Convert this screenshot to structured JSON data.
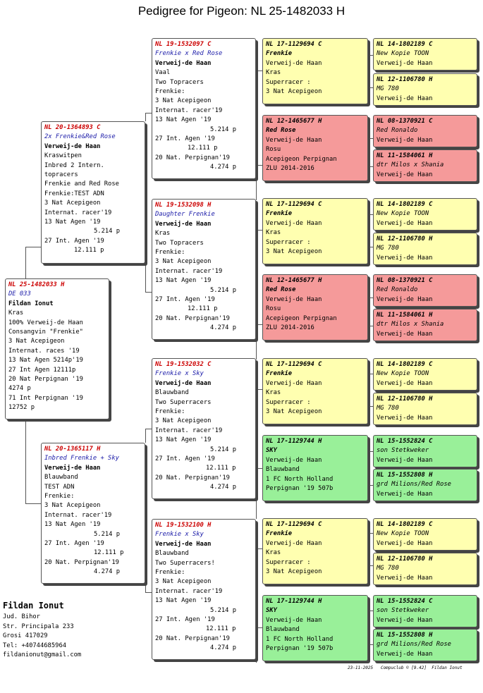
{
  "title": "Pedigree for Pigeon: NL  25-1482033 H",
  "subject": {
    "ring": "NL  25-1482033 H",
    "name": "DE 033",
    "lines": [
      "Fildan Ionut",
      "Kras",
      "100% Verweij-de Haan",
      "Consangvin \"Frenkie\"",
      "3 Nat Acepigeon",
      "Internat. races '19",
      "13 Nat Agen 5214p'19",
      "27 Int Agen 12111p",
      "20 Nat Perpignan '19",
      "4274 p",
      "71 Int Perpignan '19",
      "12752 p"
    ]
  },
  "parents": [
    {
      "ring": "NL  20-1364893 C",
      "name": "2x Frenkie&Red Rose",
      "lines": [
        "Verweij-de Haan",
        "Kraswitpen",
        "Inbred 2 Intern.",
        "topracers",
        "Frenkie and Red Rose",
        "Frenkie:TEST ADN",
        "3 Nat Acepigeon",
        "Internat. racer'19",
        "13 Nat Agen '19",
        "5.214 p",
        "27 Int. Agen '19",
        "12.111 p"
      ]
    },
    {
      "ring": "NL  20-1365117 H",
      "name": "Inbred Frenkie + Sky",
      "lines": [
        "Verweij-de Haan",
        "Blauwband",
        "TEST ADN",
        "Frenkie:",
        "3 Nat Acepigeon",
        "Internat. racer'19",
        "13 Nat Agen '19",
        "5.214 p",
        "27 Int. Agen '19",
        "12.111 p",
        "20 Nat. Perpignan'19",
        "4.274 p"
      ]
    }
  ],
  "grandparents": [
    {
      "ring": "NL  19-1532097 C",
      "name": "Frenkie x Red Rose",
      "lines": [
        "Verweij-de Haan",
        "Vaal",
        "Two Topracers",
        "Frenkie:",
        "3 Nat Acepigeon",
        "Internat. racer'19",
        "13 Nat Agen '19",
        "5.214 p",
        "27 Int. Agen '19",
        "12.111 p",
        "20 Nat. Perpignan'19",
        "4.274 p"
      ]
    },
    {
      "ring": "NL  19-1532098 H",
      "name": "Daughter Frenkie",
      "lines": [
        "Verweij-de Haan",
        "Kras",
        "Two Topracers",
        "Frenkie:",
        "3 Nat Acepigeon",
        "Internat. racer'19",
        "13 Nat Agen '19",
        "5.214 p",
        "27 Int. Agen '19",
        "12.111 p",
        "20 Nat. Perpignan'19",
        "4.274 p"
      ]
    },
    {
      "ring": "NL  19-1532032 C",
      "name": "Frenkie x Sky",
      "lines": [
        "Verweij-de Haan",
        "Blauwband",
        "Two Superracers",
        "Frenkie:",
        "3 Nat Acepigeon",
        "Internat. racer'19",
        "13 Nat Agen '19",
        "5.214 p",
        "27 Int. Agen '19",
        "12.111 p",
        "20 Nat. Perpignan'19",
        "4.274 p"
      ]
    },
    {
      "ring": "NL  19-1532100 H",
      "name": "Frenkie x Sky",
      "lines": [
        "Verweij-de Haan",
        "Blauwband",
        "Two Superracers!",
        "Frenkie:",
        "3 Nat Acepigeon",
        "Internat. racer'19",
        "13 Nat Agen '19",
        "5.214 p",
        "27 Int. Agen '19",
        "12.111 p",
        "20 Nat. Perpignan'19",
        "4.274 p"
      ]
    }
  ],
  "g3": [
    {
      "ring": "NL  17-1129694 C",
      "lines": [
        "Frenkie",
        "Verweij-de Haan",
        "Kras",
        "Superracer :",
        "3 Nat Acepigeon"
      ]
    },
    {
      "ring": "NL  12-1465677 H",
      "lines": [
        "Red Rose",
        "Verweij-de Haan",
        "Rosu",
        "Acepigeon Perpignan",
        "ZLU 2014-2016"
      ]
    },
    {
      "ring": "NL  17-1129694 C",
      "lines": [
        "Frenkie",
        "Verweij-de Haan",
        "Kras",
        "Superracer :",
        "3 Nat Acepigeon"
      ]
    },
    {
      "ring": "NL  12-1465677 H",
      "lines": [
        "Red Rose",
        "Verweij-de Haan",
        "Rosu",
        "Acepigeon Perpignan",
        "ZLU 2014-2016"
      ]
    },
    {
      "ring": "NL  17-1129694 C",
      "lines": [
        "Frenkie",
        "Verweij-de Haan",
        "Kras",
        "Superracer :",
        "3 Nat Acepigeon"
      ]
    },
    {
      "ring": "NL  17-1129744 H",
      "lines": [
        "SKY",
        "Verweij-de Haan",
        "Blauwband",
        "1 FC North Holland",
        "Perpignan '19 507b"
      ]
    },
    {
      "ring": "NL  17-1129694 C",
      "lines": [
        "Frenkie",
        "Verweij-de Haan",
        "Kras",
        "Superracer :",
        "3 Nat Acepigeon"
      ]
    },
    {
      "ring": "NL  17-1129744 H",
      "lines": [
        "SKY",
        "Verweij-de Haan",
        "Blauwband",
        "1 FC North Holland",
        "Perpignan '19 507b"
      ]
    }
  ],
  "g4": [
    {
      "ring": "NL  14-1802189 C",
      "lines": [
        "New Kopie TOON",
        "Verweij-de Haan"
      ]
    },
    {
      "ring": "NL  12-1106780 H",
      "lines": [
        "MG 780",
        "Verweij-de Haan"
      ]
    },
    {
      "ring": "NL  08-1370921 C",
      "lines": [
        "Red Ronaldo",
        "Verweij-de Haan"
      ]
    },
    {
      "ring": "NL  11-1584061 H",
      "lines": [
        "dtr Milos x Shania",
        "Verweij-de Haan"
      ]
    },
    {
      "ring": "NL  14-1802189 C",
      "lines": [
        "New Kopie TOON",
        "Verweij-de Haan"
      ]
    },
    {
      "ring": "NL  12-1106780 H",
      "lines": [
        "MG 780",
        "Verweij-de Haan"
      ]
    },
    {
      "ring": "NL  08-1370921 C",
      "lines": [
        "Red Ronaldo",
        "Verweij-de Haan"
      ]
    },
    {
      "ring": "NL  11-1584061 H",
      "lines": [
        "dtr Milos x Shania",
        "Verweij-de Haan"
      ]
    },
    {
      "ring": "NL  14-1802189 C",
      "lines": [
        "New Kopie TOON",
        "Verweij-de Haan"
      ]
    },
    {
      "ring": "NL  12-1106780 H",
      "lines": [
        "MG 780",
        "Verweij-de Haan"
      ]
    },
    {
      "ring": "NL  15-1552824 C",
      "lines": [
        "son Stetkweker",
        "Verweij-de Haan"
      ]
    },
    {
      "ring": "NL  15-1552808 H",
      "lines": [
        "grd Milions/Red Rose",
        "Verweij-de Haan"
      ]
    },
    {
      "ring": "NL  14-1802189 C",
      "lines": [
        "New Kopie TOON",
        "Verweij-de Haan"
      ]
    },
    {
      "ring": "NL  12-1106780 H",
      "lines": [
        "MG 780",
        "Verweij-de Haan"
      ]
    },
    {
      "ring": "NL  15-1552824 C",
      "lines": [
        "son Stetkweker",
        "Verweij-de Haan"
      ]
    },
    {
      "ring": "NL  15-1552808 H",
      "lines": [
        "grd Milions/Red Rose",
        "Verweij-de Haan"
      ]
    }
  ],
  "owner": {
    "name": "Fildan Ionut",
    "lines": [
      "Jud. Bihor",
      "Str. Principala 233",
      "Grosi 417029",
      "Tel: +40744685964",
      "fildanionut@gmail.com"
    ]
  },
  "footer": "23-11-2025   Compuclub © [9.42]  Fildan Ionut",
  "colors": {
    "yellow": "#ffffb0",
    "red": "#f59a9a",
    "green": "#99f099",
    "ring_text": "#cc0000",
    "name_text": "#1a1aa8"
  }
}
